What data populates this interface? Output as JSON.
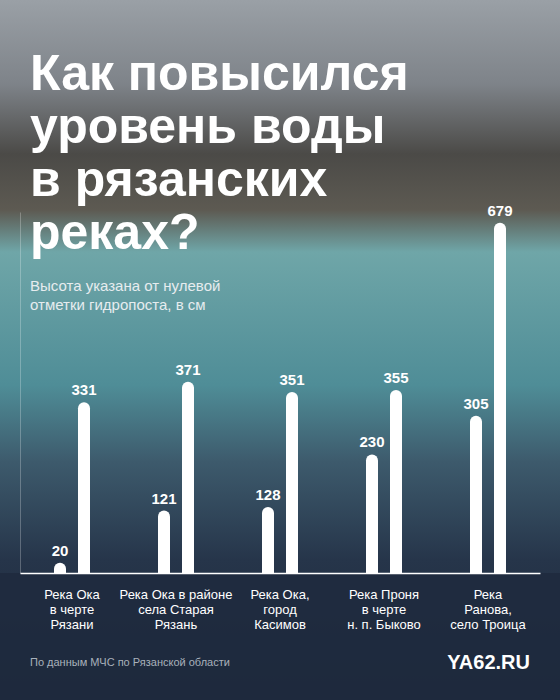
{
  "chart_data": {
    "type": "bar",
    "title": "Как повысился\nуровень воды\nв рязанских\nреках?",
    "subtitle": "Высота указана от нулевой\nотметки гидропоста, в см",
    "categories": [
      "Река Ока\nв черте\nРязани",
      "Река Ока в районе\nсела Старая\nРязань",
      "Река Ока,\nгород\nКасимов",
      "Река Проня\nв черте\nн. п. Быково",
      "Река\nРанова,\nсело Троица"
    ],
    "series": [
      {
        "color": "#ffffff",
        "values": [
          20,
          121,
          128,
          230,
          305
        ]
      },
      {
        "color": "#ffffff",
        "values": [
          331,
          371,
          351,
          355,
          679
        ]
      }
    ],
    "ylim": [
      0,
      700
    ],
    "yticks": [],
    "tick_labels": "x",
    "data_labels": true,
    "source": "По данным МЧС по Рязанской области",
    "logo": "YA62.RU"
  }
}
